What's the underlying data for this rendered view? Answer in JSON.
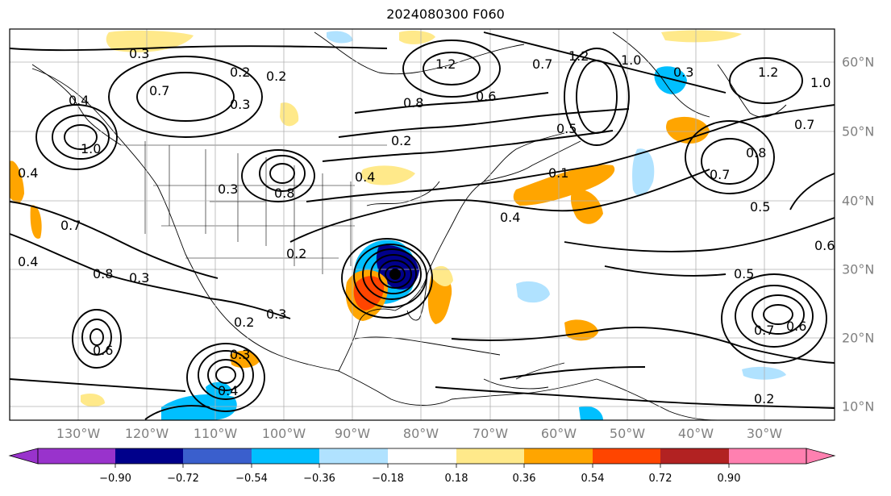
{
  "title": "2024080300 F060",
  "map": {
    "lon_ticks": [
      "130°W",
      "120°W",
      "110°W",
      "100°W",
      "90°W",
      "80°W",
      "70°W",
      "60°W",
      "50°W",
      "40°W",
      "30°W"
    ],
    "lat_ticks": [
      "60°N",
      "50°N",
      "40°N",
      "30°N",
      "20°N",
      "10°N"
    ],
    "contour_labels": [
      "0.3",
      "0.2",
      "0.3",
      "0.7",
      "0.4",
      "1.0",
      "0.4",
      "0.7",
      "0.4",
      "0.8",
      "0.3",
      "0.6",
      "0.4",
      "0.2",
      "0.3",
      "0.3",
      "0.8",
      "0.2",
      "0.4",
      "0.2",
      "0.2",
      "0.3",
      "0.8",
      "1.2",
      "0.6",
      "0.7",
      "0.5",
      "0.1",
      "0.4",
      "1.2",
      "1.0",
      "0.3",
      "1.2",
      "1.0",
      "0.7",
      "0.8",
      "0.7",
      "0.5",
      "0.6",
      "0.5",
      "0.7",
      "0.6",
      "0.2"
    ],
    "colors": {
      "land_outline": "#000000",
      "contour": "#000000",
      "grid": "#b0b0b0"
    }
  },
  "colorbar": {
    "ticks": [
      "−0.90",
      "−0.72",
      "−0.54",
      "−0.36",
      "−0.18",
      "0.18",
      "0.36",
      "0.54",
      "0.72",
      "0.90"
    ],
    "colors": [
      "#9933cc",
      "#00008b",
      "#3a5fcd",
      "#00bfff",
      "#b0e2ff",
      "#ffffff",
      "#ffe98a",
      "#ffa500",
      "#ff4500",
      "#b22222",
      "#ff80b0"
    ]
  }
}
